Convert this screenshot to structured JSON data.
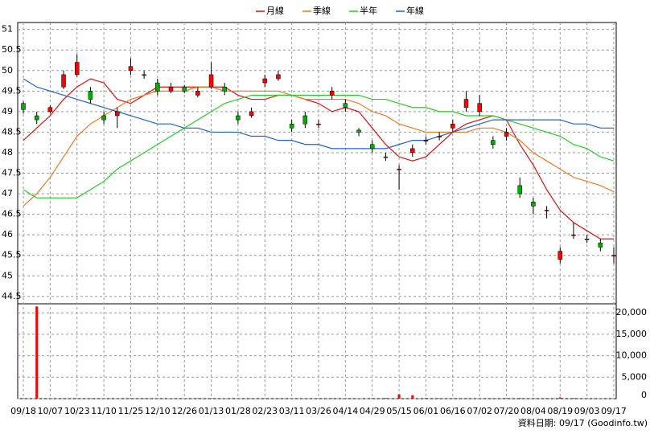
{
  "chart_data": [
    {
      "type": "candlestick",
      "categories": [
        "09/18",
        null,
        "10/07",
        null,
        "10/23",
        null,
        "11/10",
        null,
        "11/25",
        null,
        "12/10",
        null,
        "12/26",
        null,
        "01/13",
        null,
        "01/28",
        null,
        "02/23",
        null,
        "03/11",
        null,
        "03/26",
        null,
        "04/14",
        null,
        "04/29",
        null,
        "05/15",
        null,
        "06/01",
        null,
        "06/16",
        null,
        "07/02",
        null,
        "07/20",
        null,
        "08/04",
        null,
        "08/19",
        null,
        "09/03",
        null,
        "09/17"
      ],
      "open": [
        49.2,
        48.9,
        49.0,
        49.6,
        49.9,
        49.5,
        48.9,
        48.9,
        50.0,
        49.9,
        49.7,
        49.5,
        49.6,
        49.4,
        49.6,
        49.6,
        48.9,
        48.9,
        49.7,
        49.8,
        48.7,
        48.9,
        48.7,
        49.4,
        49.2,
        48.55,
        48.2,
        47.9,
        47.6,
        48.0,
        48.3,
        48.4,
        48.6,
        49.1,
        49.0,
        48.3,
        48.4,
        47.2,
        46.8,
        46.6,
        45.4,
        46.0,
        45.9,
        45.8,
        45.5
      ],
      "high": [
        49.25,
        49.0,
        49.15,
        50.0,
        50.4,
        49.6,
        49.0,
        49.1,
        50.3,
        50.0,
        49.8,
        49.7,
        49.65,
        49.6,
        50.2,
        49.7,
        49.0,
        49.1,
        49.9,
        50.0,
        48.8,
        49.0,
        48.8,
        49.6,
        49.3,
        48.6,
        48.3,
        48.0,
        47.7,
        48.2,
        48.4,
        48.5,
        48.8,
        49.5,
        49.4,
        48.4,
        48.6,
        47.4,
        46.9,
        46.7,
        45.7,
        46.3,
        46.0,
        45.9,
        45.7
      ],
      "low": [
        48.95,
        48.7,
        48.95,
        49.55,
        49.85,
        49.2,
        48.7,
        48.6,
        49.9,
        49.8,
        49.4,
        49.45,
        49.45,
        49.35,
        49.55,
        49.4,
        48.7,
        48.85,
        49.6,
        49.75,
        48.5,
        48.6,
        48.6,
        49.3,
        49.0,
        48.4,
        48.0,
        47.8,
        47.1,
        47.9,
        48.2,
        48.3,
        48.5,
        49.0,
        48.9,
        48.1,
        48.3,
        46.9,
        46.5,
        46.4,
        45.3,
        45.9,
        45.8,
        45.6,
        45.3
      ],
      "close": [
        49.05,
        48.8,
        49.1,
        49.9,
        50.2,
        49.3,
        48.8,
        49.0,
        50.1,
        49.9,
        49.5,
        49.6,
        49.5,
        49.5,
        49.9,
        49.5,
        48.8,
        49.0,
        49.8,
        49.9,
        48.6,
        48.7,
        48.7,
        49.5,
        49.1,
        48.5,
        48.1,
        47.9,
        47.6,
        48.1,
        48.3,
        48.4,
        48.7,
        49.3,
        49.2,
        48.2,
        48.5,
        47.0,
        46.7,
        46.6,
        45.6,
        46.0,
        45.9,
        45.7,
        45.5
      ],
      "up_color": "#ff0000",
      "down_color": "#00b000",
      "series": [
        {
          "name": "月線",
          "color": "#e01010",
          "values": [
            48.3,
            48.6,
            48.9,
            49.3,
            49.6,
            49.8,
            49.7,
            49.3,
            49.2,
            49.4,
            49.6,
            49.6,
            49.6,
            49.6,
            49.6,
            49.6,
            49.4,
            49.3,
            49.3,
            49.4,
            49.4,
            49.3,
            49.2,
            49.0,
            49.1,
            49.0,
            48.6,
            48.2,
            47.9,
            47.8,
            47.9,
            48.2,
            48.5,
            48.7,
            48.8,
            48.9,
            48.8,
            48.2,
            47.7,
            47.1,
            46.6,
            46.3,
            46.1,
            45.9,
            45.9
          ]
        },
        {
          "name": "季線",
          "color": "#f07820",
          "values": [
            46.7,
            47.0,
            47.4,
            47.9,
            48.4,
            48.7,
            48.9,
            49.1,
            49.3,
            49.4,
            49.5,
            49.5,
            49.5,
            49.6,
            49.6,
            49.5,
            49.5,
            49.5,
            49.5,
            49.5,
            49.4,
            49.3,
            49.3,
            49.3,
            49.3,
            49.2,
            49.0,
            48.9,
            48.7,
            48.6,
            48.5,
            48.5,
            48.5,
            48.5,
            48.6,
            48.6,
            48.5,
            48.3,
            48.0,
            47.8,
            47.6,
            47.4,
            47.3,
            47.2,
            47.05
          ]
        },
        {
          "name": "半年",
          "color": "#20d020",
          "values": [
            47.1,
            46.9,
            46.9,
            46.9,
            46.9,
            47.1,
            47.3,
            47.6,
            47.8,
            48.0,
            48.2,
            48.4,
            48.6,
            48.8,
            49.0,
            49.2,
            49.3,
            49.4,
            49.4,
            49.4,
            49.4,
            49.4,
            49.4,
            49.4,
            49.4,
            49.4,
            49.3,
            49.3,
            49.2,
            49.1,
            49.1,
            49.0,
            49.0,
            48.9,
            48.9,
            48.9,
            48.8,
            48.7,
            48.6,
            48.5,
            48.4,
            48.2,
            48.1,
            47.9,
            47.8
          ]
        },
        {
          "name": "年線",
          "color": "#2060d0",
          "values": [
            49.8,
            49.6,
            49.5,
            49.4,
            49.3,
            49.2,
            49.1,
            49.0,
            48.9,
            48.8,
            48.7,
            48.7,
            48.6,
            48.6,
            48.5,
            48.5,
            48.5,
            48.4,
            48.4,
            48.3,
            48.3,
            48.2,
            48.2,
            48.1,
            48.1,
            48.1,
            48.1,
            48.1,
            48.2,
            48.3,
            48.3,
            48.4,
            48.5,
            48.6,
            48.7,
            48.8,
            48.8,
            48.8,
            48.8,
            48.8,
            48.8,
            48.7,
            48.7,
            48.6,
            48.6
          ]
        }
      ],
      "ylim": [
        44.32,
        51.17
      ],
      "yticks": [
        44.5,
        45,
        45.5,
        46,
        46.5,
        47,
        47.5,
        48,
        48.5,
        49,
        49.5,
        50,
        50.5,
        51
      ],
      "grid": true,
      "legend": "top"
    },
    {
      "type": "bar",
      "values": [
        100,
        21500,
        120,
        100,
        90,
        80,
        100,
        90,
        110,
        80,
        90,
        100,
        80,
        90,
        110,
        90,
        100,
        80,
        90,
        100,
        120,
        90,
        80,
        100,
        110,
        90,
        120,
        150,
        1000,
        800,
        150,
        100,
        90,
        120,
        110,
        100,
        120,
        150,
        130,
        120,
        300,
        140,
        110,
        100,
        90
      ],
      "color": "#ff0000",
      "ylim": [
        0,
        22100
      ],
      "yticks": [
        0,
        {
          "value": 5000,
          "label": "5,000"
        },
        {
          "value": 10000,
          "label": "10,000"
        },
        {
          "value": 15000,
          "label": "15,000"
        },
        {
          "value": 20000,
          "label": "20,000"
        }
      ],
      "grid": true
    }
  ],
  "footer": "資料日期: 09/17 (Goodinfo.tw)"
}
